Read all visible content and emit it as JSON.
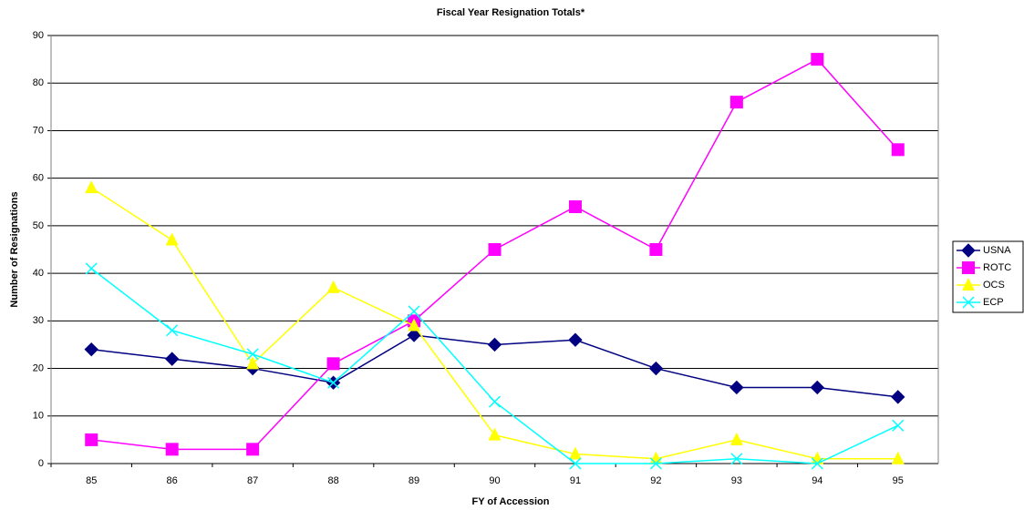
{
  "chart_data": {
    "type": "line",
    "title": "Fiscal Year Resignation Totals*",
    "x_label": "FY of Accession",
    "y_label": "Number of Resignations",
    "categories": [
      "85",
      "86",
      "87",
      "88",
      "89",
      "90",
      "91",
      "92",
      "93",
      "94",
      "95"
    ],
    "series": [
      {
        "name": "USNA",
        "color": "#000080",
        "marker": "diamond",
        "values": [
          24,
          22,
          20,
          17,
          27,
          25,
          26,
          20,
          16,
          16,
          14
        ]
      },
      {
        "name": "ROTC",
        "color": "#ff00ff",
        "marker": "square",
        "values": [
          5,
          3,
          3,
          21,
          30,
          45,
          54,
          45,
          76,
          85,
          66
        ]
      },
      {
        "name": "OCS",
        "color": "#ffff00",
        "marker": "triangle",
        "values": [
          58,
          47,
          21,
          37,
          29,
          6,
          2,
          1,
          5,
          1,
          1
        ]
      },
      {
        "name": "ECP",
        "color": "#00ffff",
        "marker": "x",
        "values": [
          41,
          28,
          23,
          17,
          32,
          13,
          0,
          0,
          1,
          0,
          8
        ]
      }
    ],
    "ylim": [
      0,
      90
    ],
    "yticks": [
      0,
      10,
      20,
      30,
      40,
      50,
      60,
      70,
      80,
      90
    ],
    "grid": true,
    "legend": "right"
  }
}
